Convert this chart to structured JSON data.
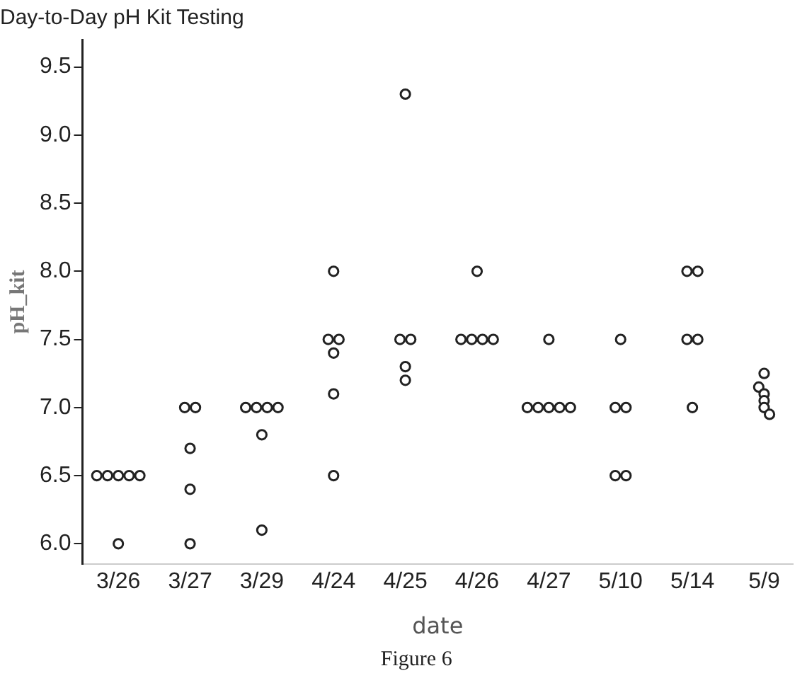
{
  "chart_data": {
    "type": "scatter",
    "title": "Day-to-Day pH Kit Testing",
    "xlabel": "date",
    "ylabel": "pH_kit",
    "annotations": [
      "Figure 6"
    ],
    "categories": [
      "3/26",
      "3/27",
      "3/29",
      "4/24",
      "4/25",
      "4/26",
      "4/27",
      "5/10",
      "5/14",
      "5/9"
    ],
    "ylim": [
      5.85,
      9.7
    ],
    "yticks": [
      {
        "value": 6,
        "label": "6.0"
      },
      {
        "value": 6.5,
        "label": "6.5"
      },
      {
        "value": 7,
        "label": "7.0"
      },
      {
        "value": 7.5,
        "label": "7.5"
      },
      {
        "value": 8,
        "label": "8.0"
      },
      {
        "value": 8.5,
        "label": "8.5"
      },
      {
        "value": 9,
        "label": "9.0"
      },
      {
        "value": 9.5,
        "label": "9.5"
      }
    ],
    "grid": false,
    "legend": false,
    "marker": "circle",
    "series": [
      {
        "color": "#222222",
        "x": [
          "3/26",
          "3/26",
          "3/26",
          "3/26",
          "3/26",
          "3/26",
          "3/27",
          "3/27",
          "3/27",
          "3/27",
          "3/27",
          "3/29",
          "3/29",
          "3/29",
          "3/29",
          "3/29",
          "3/29",
          "4/24",
          "4/24",
          "4/24",
          "4/24",
          "4/24",
          "4/24",
          "4/25",
          "4/25",
          "4/25",
          "4/25",
          "4/25",
          "4/26",
          "4/26",
          "4/26",
          "4/26",
          "4/26",
          "4/27",
          "4/27",
          "4/27",
          "4/27",
          "4/27",
          "4/27",
          "5/10",
          "5/10",
          "5/10",
          "5/10",
          "5/10",
          "5/14",
          "5/14",
          "5/14",
          "5/14",
          "5/14",
          "5/9",
          "5/9",
          "5/9",
          "5/9",
          "5/9",
          "5/9"
        ],
        "values": [
          6.5,
          6.5,
          6.5,
          6.5,
          6.5,
          6.0,
          7.0,
          7.0,
          6.7,
          6.4,
          6.0,
          7.0,
          7.0,
          7.0,
          7.0,
          6.8,
          6.1,
          8.0,
          7.5,
          7.5,
          7.4,
          7.1,
          6.5,
          9.3,
          7.5,
          7.5,
          7.2,
          7.3,
          8.0,
          7.5,
          7.5,
          7.5,
          7.5,
          7.5,
          7.0,
          7.0,
          7.0,
          7.0,
          7.0,
          7.5,
          7.0,
          7.0,
          6.5,
          6.5,
          8.0,
          8.0,
          7.5,
          7.5,
          7.0,
          7.25,
          7.15,
          7.1,
          7.05,
          7.0,
          6.95
        ]
      }
    ]
  }
}
